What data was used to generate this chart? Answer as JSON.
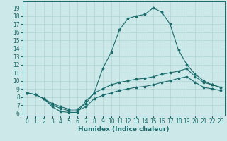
{
  "title": "",
  "xlabel": "Humidex (Indice chaleur)",
  "ylabel": "",
  "background_color": "#cce8e8",
  "grid_color": "#aed4d4",
  "line_color": "#1a6b6b",
  "xlim": [
    -0.5,
    23.5
  ],
  "ylim": [
    5.7,
    19.8
  ],
  "xticks": [
    0,
    1,
    2,
    3,
    4,
    5,
    6,
    7,
    8,
    9,
    10,
    11,
    12,
    13,
    14,
    15,
    16,
    17,
    18,
    19,
    20,
    21,
    22,
    23
  ],
  "yticks": [
    6,
    7,
    8,
    9,
    10,
    11,
    12,
    13,
    14,
    15,
    16,
    17,
    18,
    19
  ],
  "series": [
    {
      "x": [
        0,
        1,
        2,
        3,
        4,
        5,
        6,
        7,
        8,
        9,
        10,
        11,
        12,
        13,
        14,
        15,
        16,
        17,
        18,
        19,
        20,
        21,
        22,
        23
      ],
      "y": [
        8.5,
        8.3,
        7.8,
        6.8,
        6.2,
        6.1,
        6.1,
        7.5,
        8.5,
        11.5,
        13.5,
        16.3,
        17.7,
        18.0,
        18.2,
        19.0,
        18.5,
        17.0,
        13.8,
        12.0,
        10.8,
        10.0,
        9.5,
        9.2
      ]
    },
    {
      "x": [
        0,
        1,
        2,
        3,
        4,
        5,
        6,
        7,
        8,
        9,
        10,
        11,
        12,
        13,
        14,
        15,
        16,
        17,
        18,
        19,
        20,
        21,
        22,
        23
      ],
      "y": [
        8.5,
        8.3,
        7.8,
        7.2,
        6.8,
        6.5,
        6.5,
        7.2,
        8.5,
        9.0,
        9.5,
        9.8,
        10.0,
        10.2,
        10.3,
        10.5,
        10.8,
        11.0,
        11.2,
        11.5,
        10.5,
        9.8,
        9.5,
        9.2
      ]
    },
    {
      "x": [
        0,
        1,
        2,
        3,
        4,
        5,
        6,
        7,
        8,
        9,
        10,
        11,
        12,
        13,
        14,
        15,
        16,
        17,
        18,
        19,
        20,
        21,
        22,
        23
      ],
      "y": [
        8.5,
        8.3,
        7.8,
        7.0,
        6.6,
        6.3,
        6.3,
        6.8,
        7.8,
        8.2,
        8.5,
        8.8,
        9.0,
        9.2,
        9.3,
        9.5,
        9.8,
        10.0,
        10.3,
        10.5,
        9.8,
        9.2,
        9.0,
        8.8
      ]
    }
  ],
  "label_fontsize": 6.5,
  "tick_fontsize": 5.5,
  "fig_width": 3.2,
  "fig_height": 2.0,
  "dpi": 100
}
